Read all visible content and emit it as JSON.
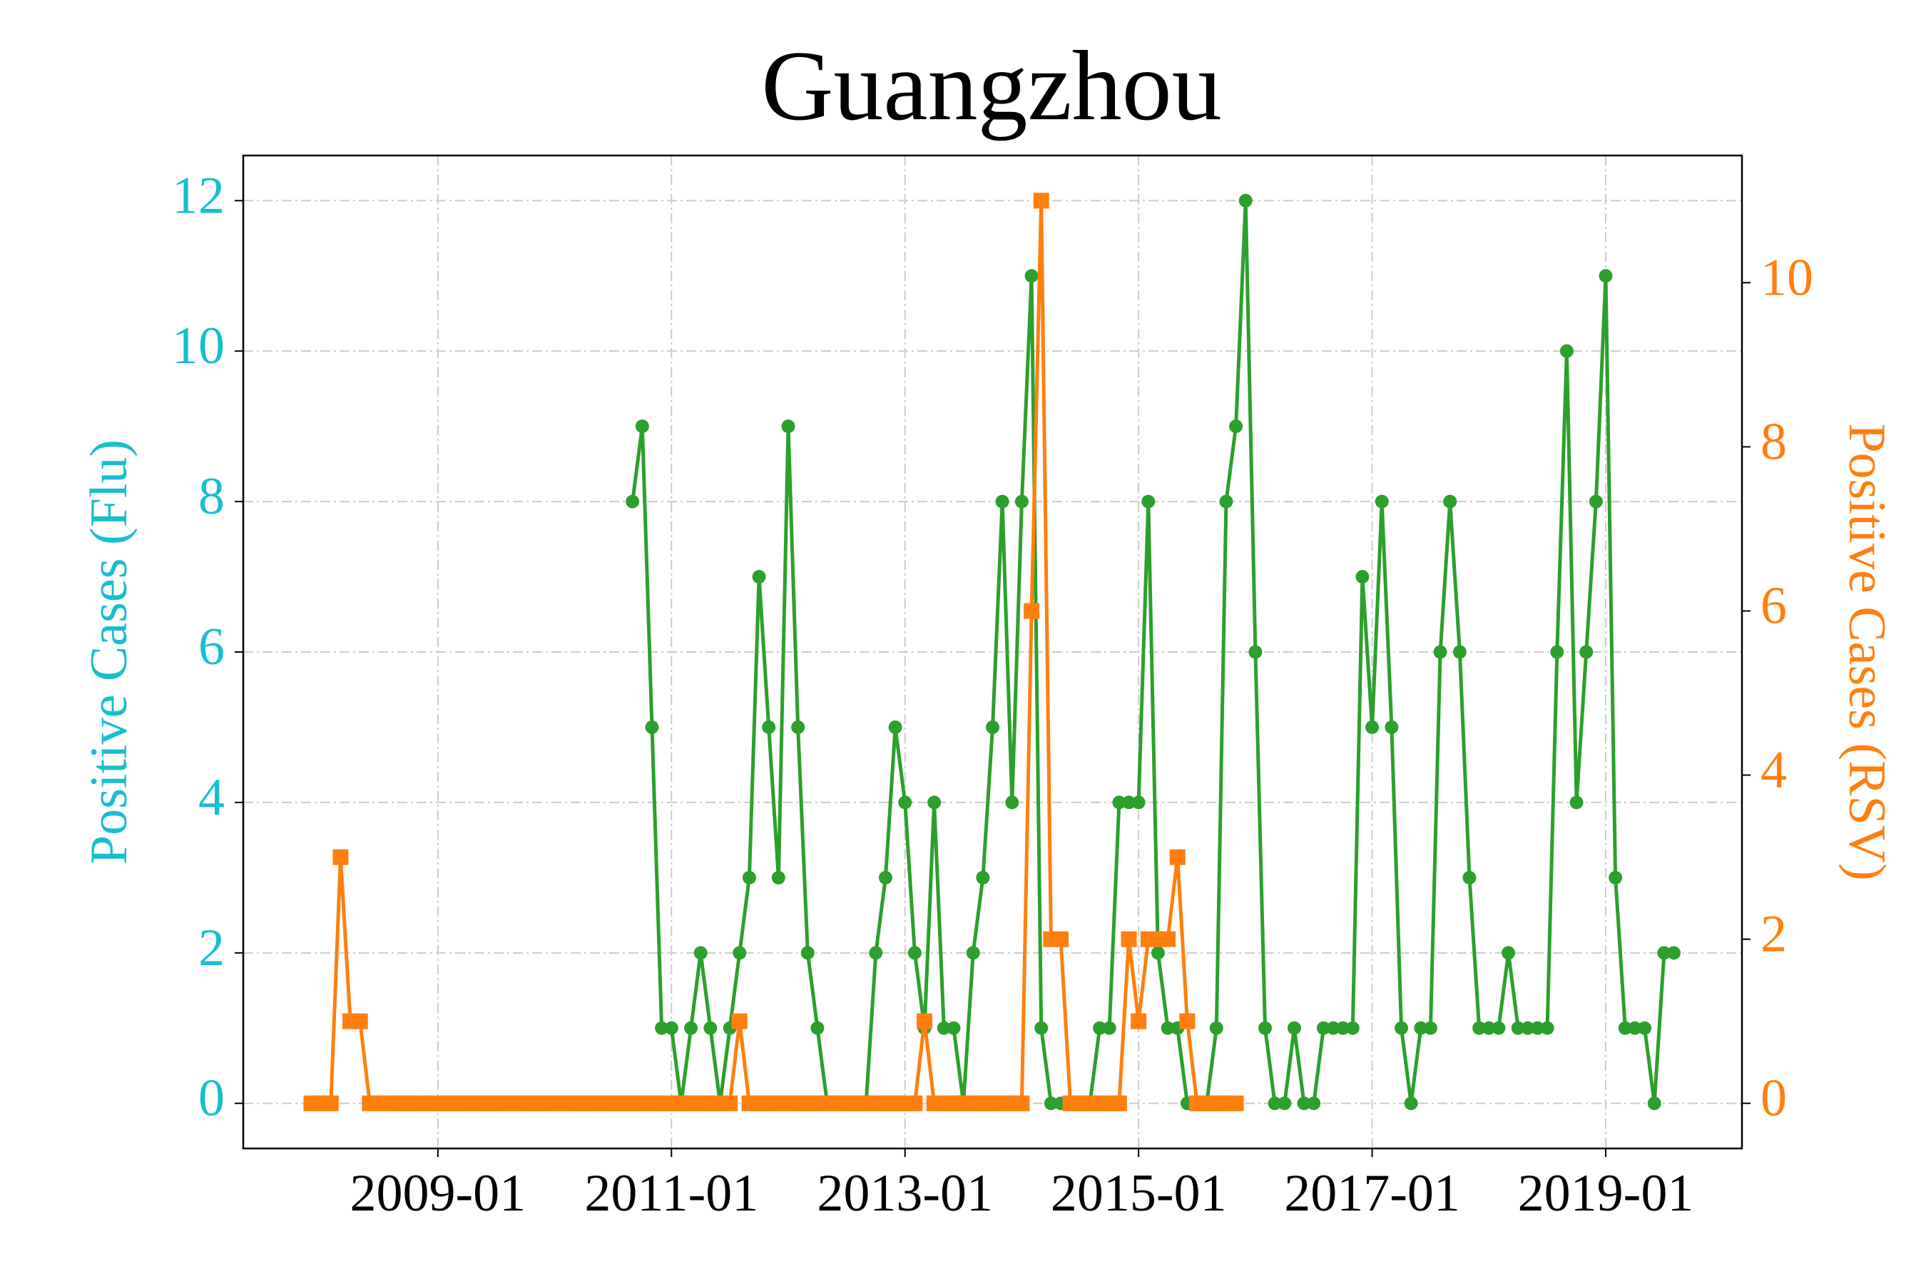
{
  "chart_data": {
    "type": "line",
    "title": "Guangzhou",
    "y_label": "Positive Cases (Flu)",
    "y2_label": "Positive Cases (RSV)",
    "y_label_color": "#17becf",
    "y2_label_color": "#ff7f0e",
    "xlim": [
      "2007-05",
      "2020-03"
    ],
    "xticks": [
      "2009-01",
      "2011-01",
      "2013-01",
      "2015-01",
      "2017-01",
      "2019-01"
    ],
    "ylim": [
      -0.6,
      12.6
    ],
    "yticks": [
      0,
      2,
      4,
      6,
      8,
      10,
      12
    ],
    "y2lim": [
      -0.55,
      11.55
    ],
    "y2ticks": [
      0,
      2,
      4,
      6,
      8,
      10
    ],
    "grid": true,
    "x": [
      "2007-12",
      "2008-01",
      "2008-02",
      "2008-03",
      "2008-04",
      "2008-05",
      "2008-06",
      "2008-07",
      "2008-08",
      "2008-09",
      "2008-10",
      "2008-11",
      "2008-12",
      "2009-01",
      "2009-02",
      "2009-03",
      "2009-04",
      "2009-05",
      "2009-06",
      "2009-07",
      "2009-08",
      "2009-09",
      "2009-10",
      "2009-11",
      "2009-12",
      "2010-01",
      "2010-02",
      "2010-03",
      "2010-04",
      "2010-05",
      "2010-06",
      "2010-07",
      "2010-08",
      "2010-09",
      "2010-10",
      "2010-11",
      "2010-12",
      "2011-01",
      "2011-02",
      "2011-03",
      "2011-04",
      "2011-05",
      "2011-06",
      "2011-07",
      "2011-08",
      "2011-09",
      "2011-10",
      "2011-11",
      "2011-12",
      "2012-01",
      "2012-02",
      "2012-03",
      "2012-04",
      "2012-05",
      "2012-06",
      "2012-07",
      "2012-08",
      "2012-09",
      "2012-10",
      "2012-11",
      "2012-12",
      "2013-01",
      "2013-02",
      "2013-03",
      "2013-04",
      "2013-05",
      "2013-06",
      "2013-07",
      "2013-08",
      "2013-09",
      "2013-10",
      "2013-11",
      "2013-12",
      "2014-01",
      "2014-02",
      "2014-03",
      "2014-04",
      "2014-05",
      "2014-06",
      "2014-07",
      "2014-08",
      "2014-09",
      "2014-10",
      "2014-11",
      "2014-12",
      "2015-01",
      "2015-02",
      "2015-03",
      "2015-04",
      "2015-05",
      "2015-06",
      "2015-07",
      "2015-08",
      "2015-09",
      "2015-10",
      "2015-11",
      "2015-12",
      "2016-01",
      "2016-02",
      "2016-03",
      "2016-04",
      "2016-05",
      "2016-06",
      "2016-07",
      "2016-08",
      "2016-09",
      "2016-10",
      "2016-11",
      "2016-12",
      "2017-01",
      "2017-02",
      "2017-03",
      "2017-04",
      "2017-05",
      "2017-06",
      "2017-07",
      "2017-08",
      "2017-09",
      "2017-10",
      "2017-11",
      "2017-12",
      "2018-01",
      "2018-02",
      "2018-03",
      "2018-04",
      "2018-05",
      "2018-06",
      "2018-07",
      "2018-08",
      "2018-09",
      "2018-10",
      "2018-11",
      "2018-12",
      "2019-01",
      "2019-02",
      "2019-03",
      "2019-04",
      "2019-05",
      "2019-06",
      "2019-07",
      "2019-08"
    ],
    "series": [
      {
        "color": "#2ca02c",
        "marker": "circle",
        "values": [
          null,
          null,
          null,
          null,
          null,
          null,
          null,
          null,
          null,
          null,
          null,
          null,
          null,
          null,
          null,
          null,
          null,
          null,
          null,
          null,
          null,
          null,
          null,
          null,
          null,
          null,
          null,
          null,
          null,
          null,
          null,
          null,
          null,
          8,
          9,
          5,
          1,
          1,
          0,
          1,
          2,
          1,
          0,
          1,
          2,
          3,
          7,
          5,
          3,
          9,
          5,
          2,
          1,
          0,
          0,
          0,
          0,
          0,
          2,
          3,
          5,
          4,
          2,
          1,
          4,
          1,
          1,
          0,
          2,
          3,
          5,
          8,
          4,
          8,
          11,
          1,
          0,
          0,
          0,
          0,
          0,
          1,
          1,
          4,
          4,
          4,
          8,
          2,
          1,
          1,
          0,
          0,
          0,
          1,
          8,
          9,
          12,
          6,
          1,
          0,
          0,
          1,
          0,
          0,
          1,
          1,
          1,
          1,
          7,
          5,
          8,
          5,
          1,
          0,
          1,
          1,
          6,
          8,
          6,
          3,
          1,
          1,
          1,
          2,
          1,
          1,
          1,
          1,
          6,
          10,
          4,
          6,
          8,
          11,
          3,
          1,
          1,
          1,
          0,
          2,
          2
        ]
      },
      {
        "color": "#ff7f0e",
        "marker": "square",
        "axis": "y2",
        "values": [
          0,
          0,
          0,
          3,
          1,
          1,
          0,
          0,
          0,
          0,
          0,
          0,
          0,
          0,
          0,
          0,
          0,
          0,
          0,
          0,
          0,
          0,
          0,
          0,
          0,
          0,
          0,
          0,
          0,
          0,
          0,
          0,
          0,
          0,
          0,
          0,
          0,
          0,
          0,
          0,
          0,
          0,
          0,
          0,
          1,
          0,
          0,
          0,
          0,
          0,
          0,
          0,
          0,
          0,
          0,
          0,
          0,
          0,
          0,
          0,
          0,
          0,
          0,
          1,
          0,
          0,
          0,
          0,
          0,
          0,
          0,
          0,
          0,
          0,
          6,
          11,
          2,
          2,
          0,
          0,
          0,
          0,
          0,
          0,
          2,
          1,
          2,
          2,
          2,
          3,
          1,
          0,
          0,
          0,
          0,
          0,
          null,
          null,
          null,
          null,
          null,
          null,
          null,
          null,
          null,
          null,
          null,
          null,
          null,
          null,
          null,
          null,
          null,
          null,
          null,
          null,
          null,
          null,
          null,
          null,
          null,
          null,
          null,
          null,
          null,
          null,
          null,
          null,
          null,
          null,
          null,
          null,
          null,
          null,
          null,
          null,
          null,
          null,
          null,
          null,
          null
        ]
      }
    ]
  }
}
